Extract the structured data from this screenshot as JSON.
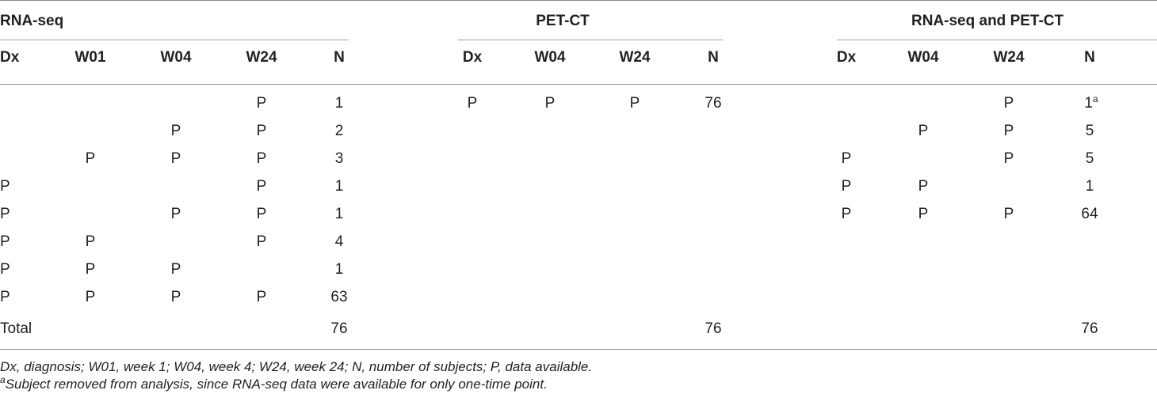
{
  "groups": {
    "rnaseq": "RNA-seq",
    "petct": "PET-CT",
    "both": "RNA-seq and PET-CT"
  },
  "columns": {
    "rnaseq": [
      "Dx",
      "W01",
      "W04",
      "W24",
      "N"
    ],
    "petct": [
      "Dx",
      "W04",
      "W24",
      "N"
    ],
    "both": [
      "Dx",
      "W04",
      "W24",
      "N"
    ]
  },
  "rows": {
    "rnaseq": [
      [
        "",
        "",
        "",
        "P",
        "1"
      ],
      [
        "",
        "",
        "P",
        "P",
        "2"
      ],
      [
        "",
        "P",
        "P",
        "P",
        "3"
      ],
      [
        "P",
        "",
        "",
        "P",
        "1"
      ],
      [
        "P",
        "",
        "P",
        "P",
        "1"
      ],
      [
        "P",
        "P",
        "",
        "P",
        "4"
      ],
      [
        "P",
        "P",
        "P",
        "",
        "1"
      ],
      [
        "P",
        "P",
        "P",
        "P",
        "63"
      ]
    ],
    "petct": [
      [
        "P",
        "P",
        "P",
        "76"
      ]
    ],
    "both": [
      [
        "",
        "",
        "P",
        "1"
      ],
      [
        "",
        "P",
        "P",
        "5"
      ],
      [
        "P",
        "",
        "P",
        "5"
      ],
      [
        "P",
        "P",
        "",
        "1"
      ],
      [
        "P",
        "P",
        "P",
        "64"
      ]
    ]
  },
  "both_first_n_sup": "a",
  "total": {
    "label": "Total",
    "rnaseq": "76",
    "petct": "76",
    "both": "76"
  },
  "footnotes": {
    "abbreviations": "Dx, diagnosis; W01, week 1; W04, week 4; W24, week 24; N, number of subjects; P, data available.",
    "a_mark": "a",
    "a_text": "Subject removed from analysis, since RNA-seq data were available for only one-time point."
  }
}
